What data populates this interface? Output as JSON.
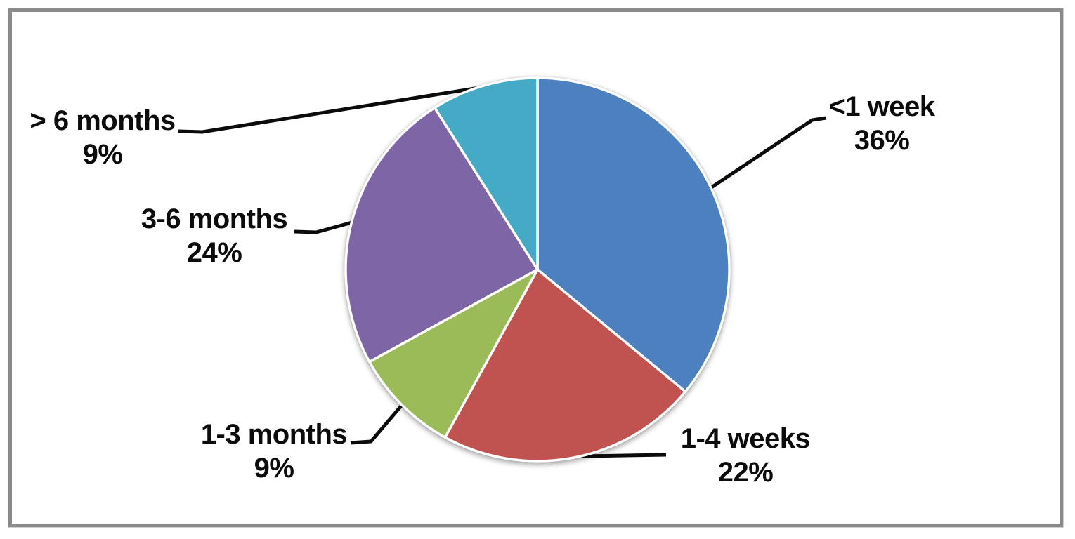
{
  "chart_data": {
    "type": "pie",
    "title": "",
    "start_angle_deg": 0,
    "direction": "clockwise",
    "slices": [
      {
        "label": "<1 week",
        "value": 36,
        "pct_label": "36%",
        "color": "#4C80BF"
      },
      {
        "label": "1-4 weeks",
        "value": 22,
        "pct_label": "22%",
        "color": "#C05250"
      },
      {
        "label": "1-3 months",
        "value": 9,
        "pct_label": "9%",
        "color": "#9BBB59"
      },
      {
        "label": "3-6 months",
        "value": 24,
        "pct_label": "24%",
        "color": "#7E66A6"
      },
      {
        "label": "> 6 months",
        "value": 9,
        "pct_label": "9%",
        "color": "#44AAC6"
      }
    ],
    "slice_border_color": "#FFFFFF",
    "leader_line_color": "#0B0B0B",
    "label_text_color": "#0B0B0B",
    "frame_border_color": "#8A8A8A",
    "background_color": "#FFFFFF",
    "legend": "none",
    "labels_style": "outside-with-leader-lines"
  }
}
